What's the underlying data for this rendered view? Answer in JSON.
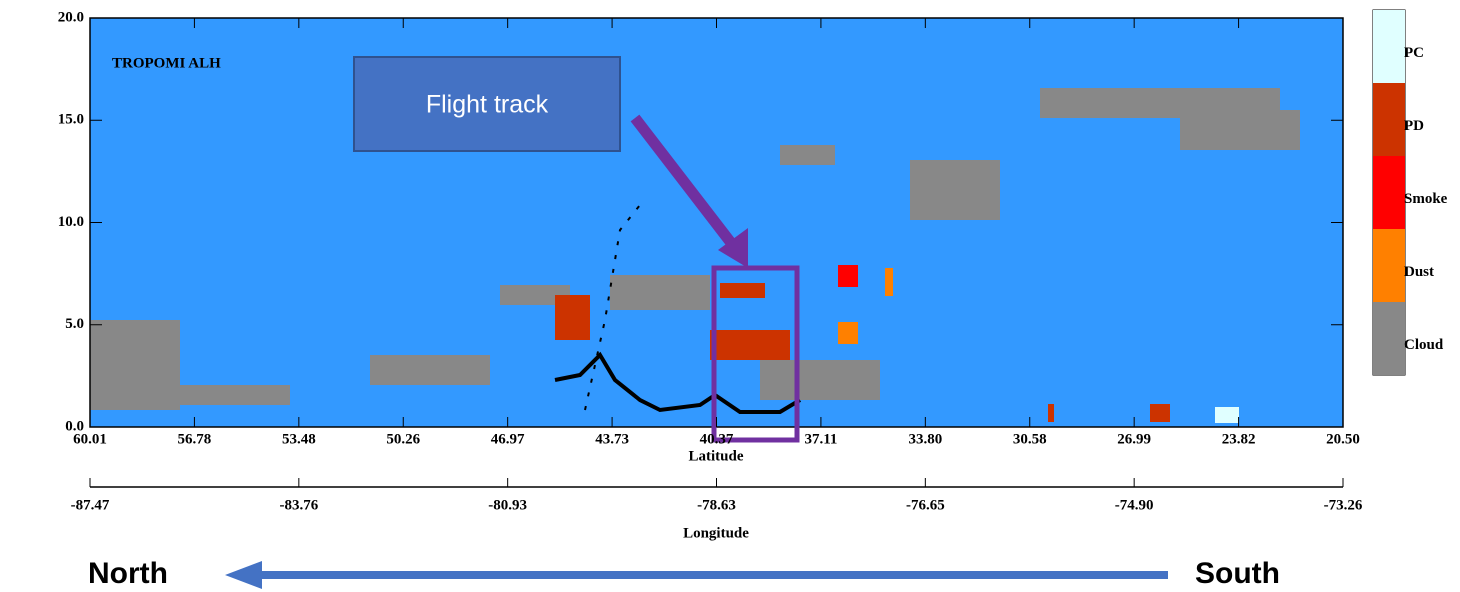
{
  "chart_data": {
    "type": "curtain",
    "title": "TROPOMI ALH",
    "annotation": "Flight track",
    "x_label": "Latitude",
    "x2_label": "Longitude",
    "background_color": "#3399ff",
    "ylim": [
      0,
      20
    ],
    "yticks": [
      {
        "value": 0,
        "label": "0.0"
      },
      {
        "value": 5,
        "label": "5.0"
      },
      {
        "value": 10,
        "label": "10.0"
      },
      {
        "value": 15,
        "label": "15.0"
      },
      {
        "value": 20,
        "label": "20.0"
      }
    ],
    "xticks": [
      60.01,
      56.78,
      53.48,
      50.26,
      46.97,
      43.73,
      40.37,
      37.11,
      {
        "value": 33.8,
        "label": "33.80"
      },
      30.58,
      26.99,
      23.82,
      {
        "value": 20.5,
        "label": "20.50"
      }
    ],
    "x2ticks": [
      -87.47,
      -83.76,
      -80.93,
      -78.63,
      -76.65,
      {
        "value": -74.9,
        "label": "-74.90"
      },
      -73.26
    ],
    "colorbar": [
      {
        "name": "PC",
        "color": "#e0ffff"
      },
      {
        "name": "PD",
        "color": "#cc3300"
      },
      {
        "name": "Smoke",
        "color": "#ff0000"
      },
      {
        "name": "Dust",
        "color": "#ff8000"
      },
      {
        "name": "Cloud",
        "color": "#888888"
      }
    ],
    "direction_labels": {
      "left": "North",
      "right": "South"
    }
  }
}
